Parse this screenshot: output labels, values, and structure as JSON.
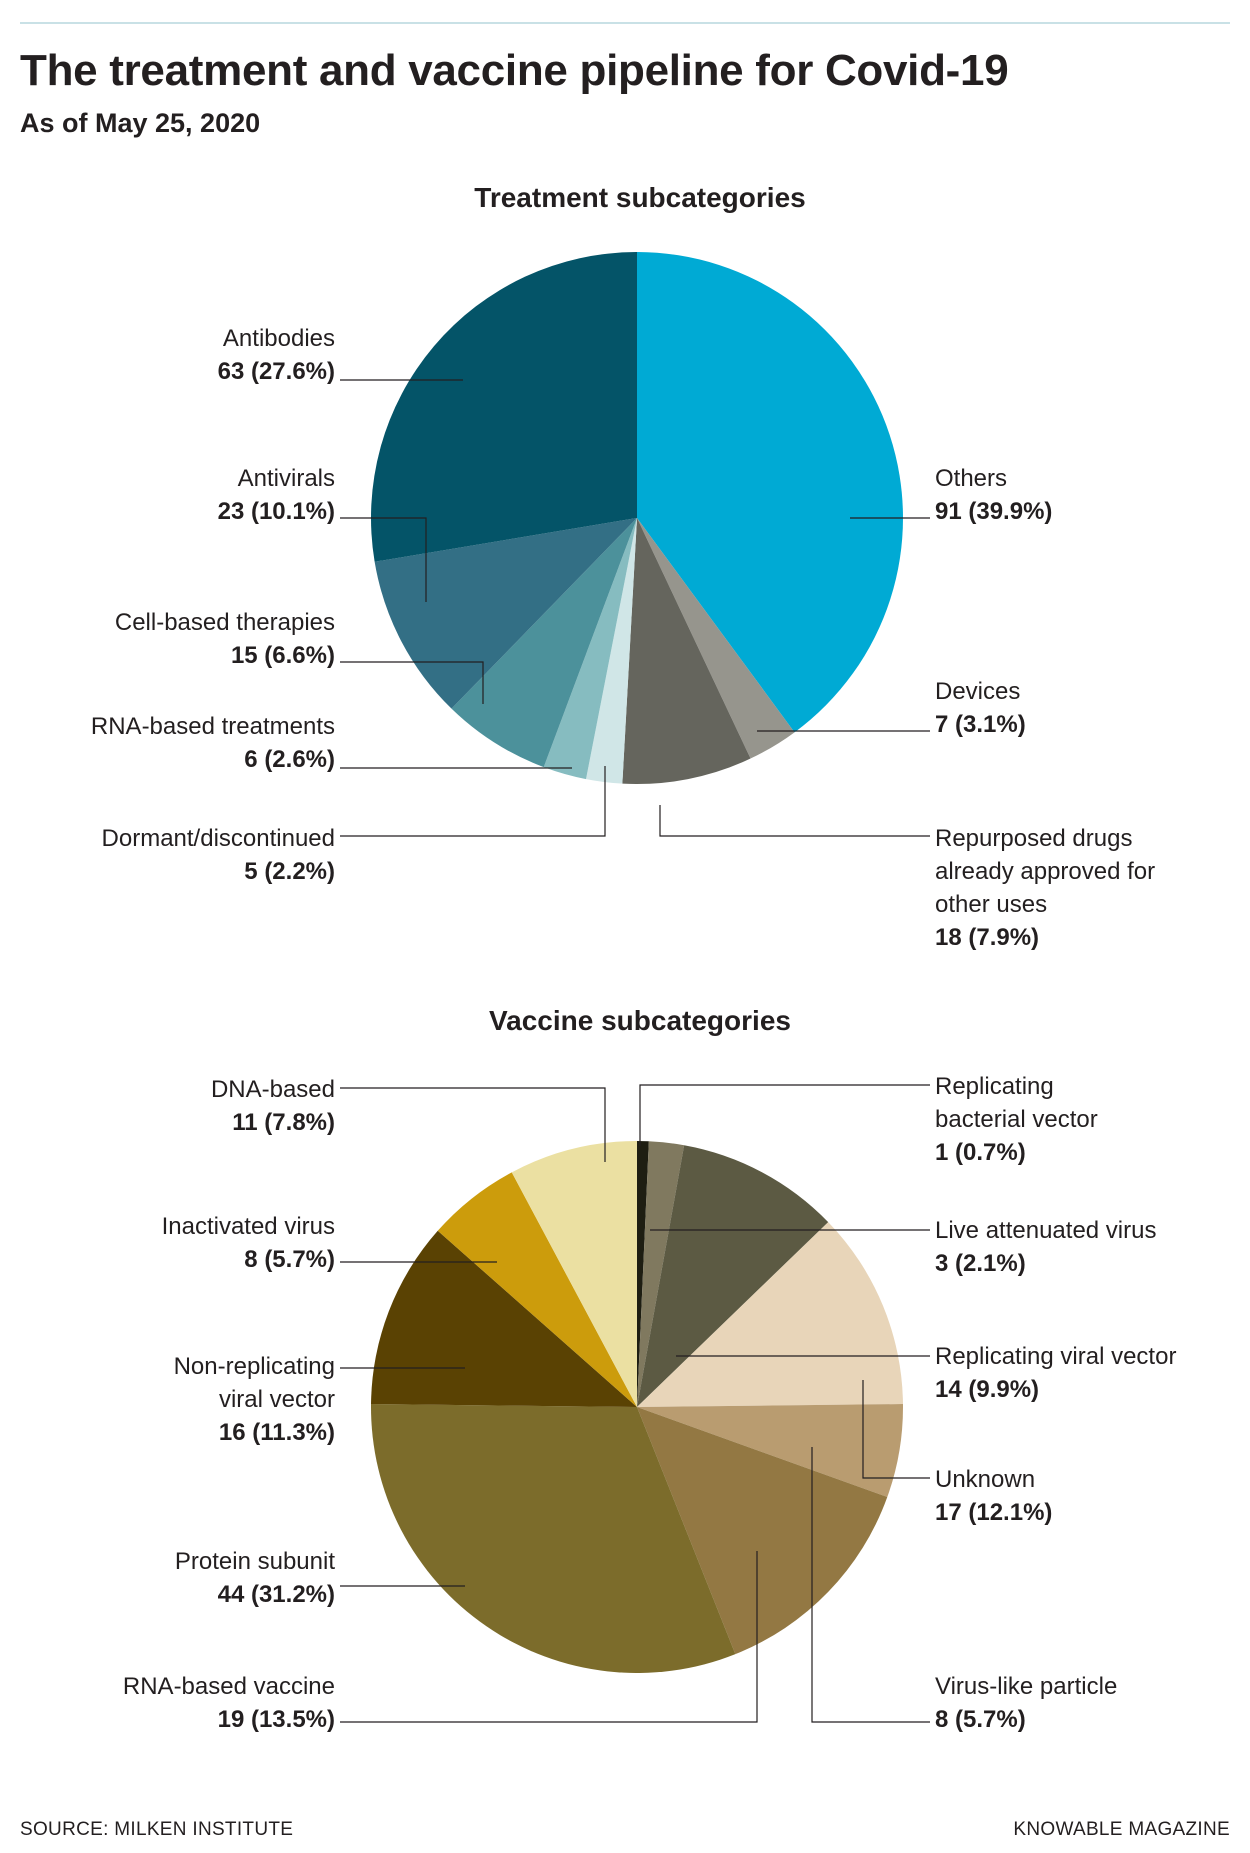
{
  "title": "The treatment and vaccine pipeline for Covid-19",
  "subtitle": "As of May 25, 2020",
  "source": "SOURCE: MILKEN INSTITUTE",
  "credit": "KNOWABLE MAGAZINE",
  "chart_data": [
    {
      "type": "pie",
      "title": "Treatment subcategories",
      "slices": [
        {
          "name": "Others",
          "value": 91,
          "pct": "39.9%",
          "color": "#00aad4",
          "label": [
            "Others"
          ],
          "value_text": "91 (39.9%)"
        },
        {
          "name": "Devices",
          "value": 7,
          "pct": "3.1%",
          "color": "#96958d",
          "label": [
            "Devices"
          ],
          "value_text": "7 (3.1%)"
        },
        {
          "name": "Repurposed drugs already approved for other uses",
          "value": 18,
          "pct": "7.9%",
          "color": "#65655d",
          "label": [
            "Repurposed drugs",
            "already approved for",
            "other uses"
          ],
          "value_text": "18 (7.9%)"
        },
        {
          "name": "Dormant/discontinued",
          "value": 5,
          "pct": "2.2%",
          "color": "#d0e6e7",
          "label": [
            "Dormant/discontinued"
          ],
          "value_text": "5 (2.2%)"
        },
        {
          "name": "RNA-based treatments",
          "value": 6,
          "pct": "2.6%",
          "color": "#86bcc0",
          "label": [
            "RNA-based treatments"
          ],
          "value_text": "6 (2.6%)"
        },
        {
          "name": "Cell-based therapies",
          "value": 15,
          "pct": "6.6%",
          "color": "#4c919b",
          "label": [
            "Cell-based therapies"
          ],
          "value_text": "15 (6.6%)"
        },
        {
          "name": "Antivirals",
          "value": 23,
          "pct": "10.1%",
          "color": "#336f85",
          "label": [
            "Antivirals"
          ],
          "value_text": "23 (10.1%)"
        },
        {
          "name": "Antibodies",
          "value": 63,
          "pct": "27.6%",
          "color": "#045468",
          "label": [
            "Antibodies"
          ],
          "value_text": "63 (27.6%)"
        }
      ]
    },
    {
      "type": "pie",
      "title": "Vaccine subcategories",
      "slices": [
        {
          "name": "Replicating bacterial vector",
          "value": 1,
          "pct": "0.7%",
          "color": "#1e1e12",
          "label": [
            "Replicating",
            "bacterial vector"
          ],
          "value_text": "1 (0.7%)"
        },
        {
          "name": "Live attenuated virus",
          "value": 3,
          "pct": "2.1%",
          "color": "#80795f",
          "label": [
            "Live attenuated virus"
          ],
          "value_text": "3 (2.1%)"
        },
        {
          "name": "Replicating viral vector",
          "value": 14,
          "pct": "9.9%",
          "color": "#5c5a43",
          "label": [
            "Replicating viral vector"
          ],
          "value_text": "14 (9.9%)"
        },
        {
          "name": "Unknown",
          "value": 17,
          "pct": "12.1%",
          "color": "#e8d5b9",
          "label": [
            "Unknown"
          ],
          "value_text": "17 (12.1%)"
        },
        {
          "name": "Virus-like particle",
          "value": 8,
          "pct": "5.7%",
          "color": "#b99c70",
          "label": [
            "Virus-like particle"
          ],
          "value_text": "8 (5.7%)"
        },
        {
          "name": "RNA-based vaccine",
          "value": 19,
          "pct": "13.5%",
          "color": "#937843",
          "label": [
            "RNA-based vaccine"
          ],
          "value_text": "19 (13.5%)"
        },
        {
          "name": "Protein subunit",
          "value": 44,
          "pct": "31.2%",
          "color": "#7c6c2b",
          "label": [
            "Protein subunit"
          ],
          "value_text": "44 (31.2%)"
        },
        {
          "name": "Non-replicating viral vector",
          "value": 16,
          "pct": "11.3%",
          "color": "#5a4203",
          "label": [
            "Non-replicating",
            "viral vector"
          ],
          "value_text": "16 (11.3%)"
        },
        {
          "name": "Inactivated virus",
          "value": 8,
          "pct": "5.7%",
          "color": "#cc9c0c",
          "label": [
            "Inactivated virus"
          ],
          "value_text": "8 (5.7%)"
        },
        {
          "name": "DNA-based",
          "value": 11,
          "pct": "7.8%",
          "color": "#ebe0a2",
          "label": [
            "DNA-based"
          ],
          "value_text": "11 (7.8%)"
        }
      ]
    }
  ]
}
